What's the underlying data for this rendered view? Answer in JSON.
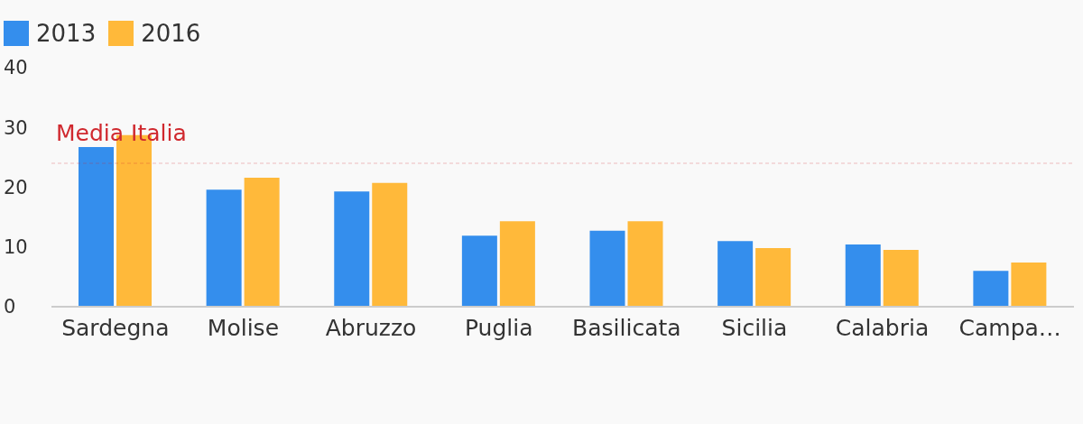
{
  "chart_data": {
    "type": "bar",
    "categories": [
      "Sardegna",
      "Molise",
      "Abruzzo",
      "Puglia",
      "Basilicata",
      "Sicilia",
      "Calabria",
      "Campa…"
    ],
    "series": [
      {
        "name": "2013",
        "color": "#348eed",
        "values": [
          26.7,
          19.6,
          19.3,
          11.9,
          12.7,
          11.0,
          10.4,
          6.0
        ]
      },
      {
        "name": "2016",
        "color": "#ffb93a",
        "values": [
          28.7,
          21.6,
          20.7,
          14.3,
          14.3,
          9.8,
          9.5,
          7.4
        ]
      }
    ],
    "ylim": [
      0,
      40
    ],
    "yticks": [
      0,
      10,
      20,
      30,
      40
    ],
    "grid": false,
    "legend": "top left",
    "ref_lines": [
      {
        "axis": "y",
        "value": 24,
        "label": "Media Italia",
        "color": "#d0282e",
        "line_style": "dashed"
      }
    ]
  }
}
